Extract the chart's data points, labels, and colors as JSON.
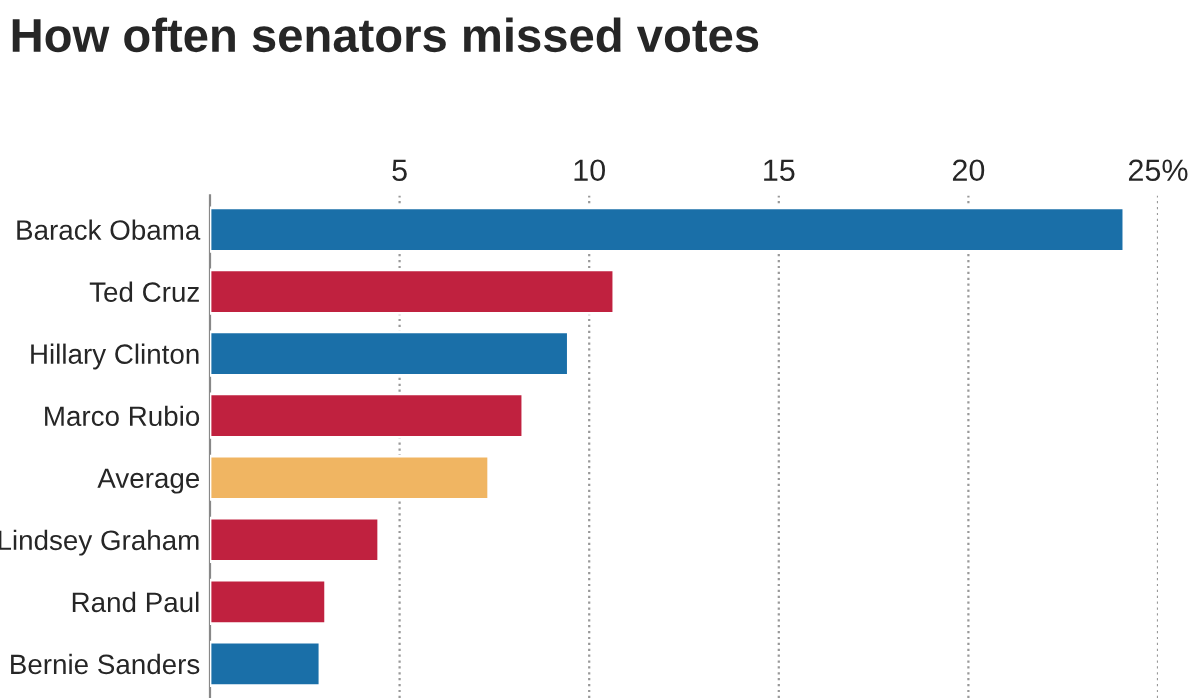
{
  "chart_data": {
    "type": "bar",
    "orientation": "horizontal",
    "title": "How often senators missed votes",
    "categories": [
      "Barack Obama",
      "Ted Cruz",
      "Hillary Clinton",
      "Marco Rubio",
      "Average",
      "Lindsey Graham",
      "Rand Paul",
      "Bernie Sanders"
    ],
    "values": [
      24.1,
      10.65,
      9.45,
      8.25,
      7.35,
      4.45,
      3.05,
      2.9
    ],
    "colors": [
      "#1a6fa8",
      "#c0213f",
      "#1a6fa8",
      "#c0213f",
      "#f0b562",
      "#c0213f",
      "#c0213f",
      "#1a6fa8"
    ],
    "xlim": [
      0,
      25
    ],
    "xticks": [
      5,
      10,
      15,
      20,
      {
        "value": 25,
        "label": "25%"
      }
    ],
    "grid": "x"
  }
}
